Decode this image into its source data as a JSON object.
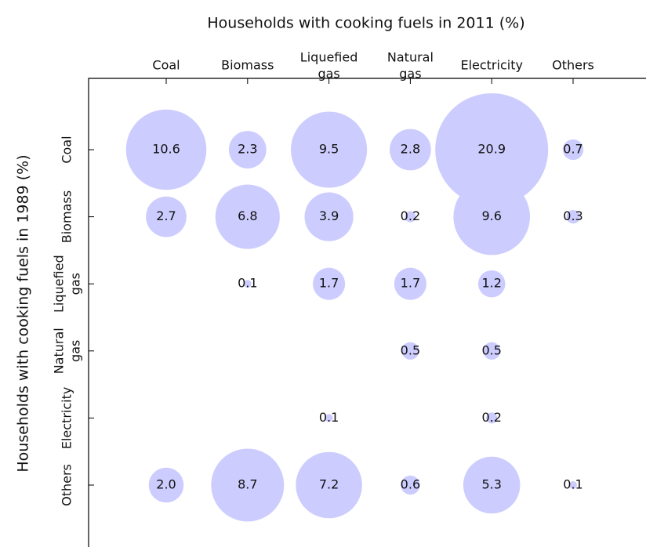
{
  "chart_data": {
    "type": "bubble",
    "title": "Households with cooking fuels in 2011 (%)",
    "y_label": "Households with cooking fuels in 1989 (%)",
    "categories": [
      "Coal",
      "Biomass",
      "Liquefied gas",
      "Natural gas",
      "Electricity",
      "Others"
    ],
    "row_categories": [
      "Coal",
      "Biomass",
      "Liquefied gas",
      "Natural gas",
      "Electricity",
      "Others"
    ],
    "color": "#ccccff",
    "values": [
      [
        10.6,
        2.3,
        9.5,
        2.8,
        20.9,
        0.7
      ],
      [
        2.7,
        6.8,
        3.9,
        0.2,
        9.6,
        0.3
      ],
      [
        null,
        0.1,
        1.7,
        1.7,
        1.2,
        null
      ],
      [
        null,
        null,
        null,
        0.5,
        0.5,
        null
      ],
      [
        null,
        null,
        0.1,
        null,
        0.2,
        null
      ],
      [
        2.0,
        8.7,
        7.2,
        0.6,
        5.3,
        0.1
      ]
    ],
    "value_labels": [
      [
        "10.6",
        "2.3",
        "9.5",
        "2.8",
        "20.9",
        "0.7"
      ],
      [
        "2.7",
        "6.8",
        "3.9",
        "0.2",
        "9.6",
        "0.3"
      ],
      [
        null,
        "0.1",
        "1.7",
        "1.7",
        "1.2",
        null
      ],
      [
        null,
        null,
        null,
        "0.5",
        "0.5",
        null
      ],
      [
        null,
        null,
        "0.1",
        null,
        "0.2",
        null
      ],
      [
        "2.0",
        "8.7",
        "7.2",
        "0.6",
        "5.3",
        "0.1"
      ]
    ]
  }
}
